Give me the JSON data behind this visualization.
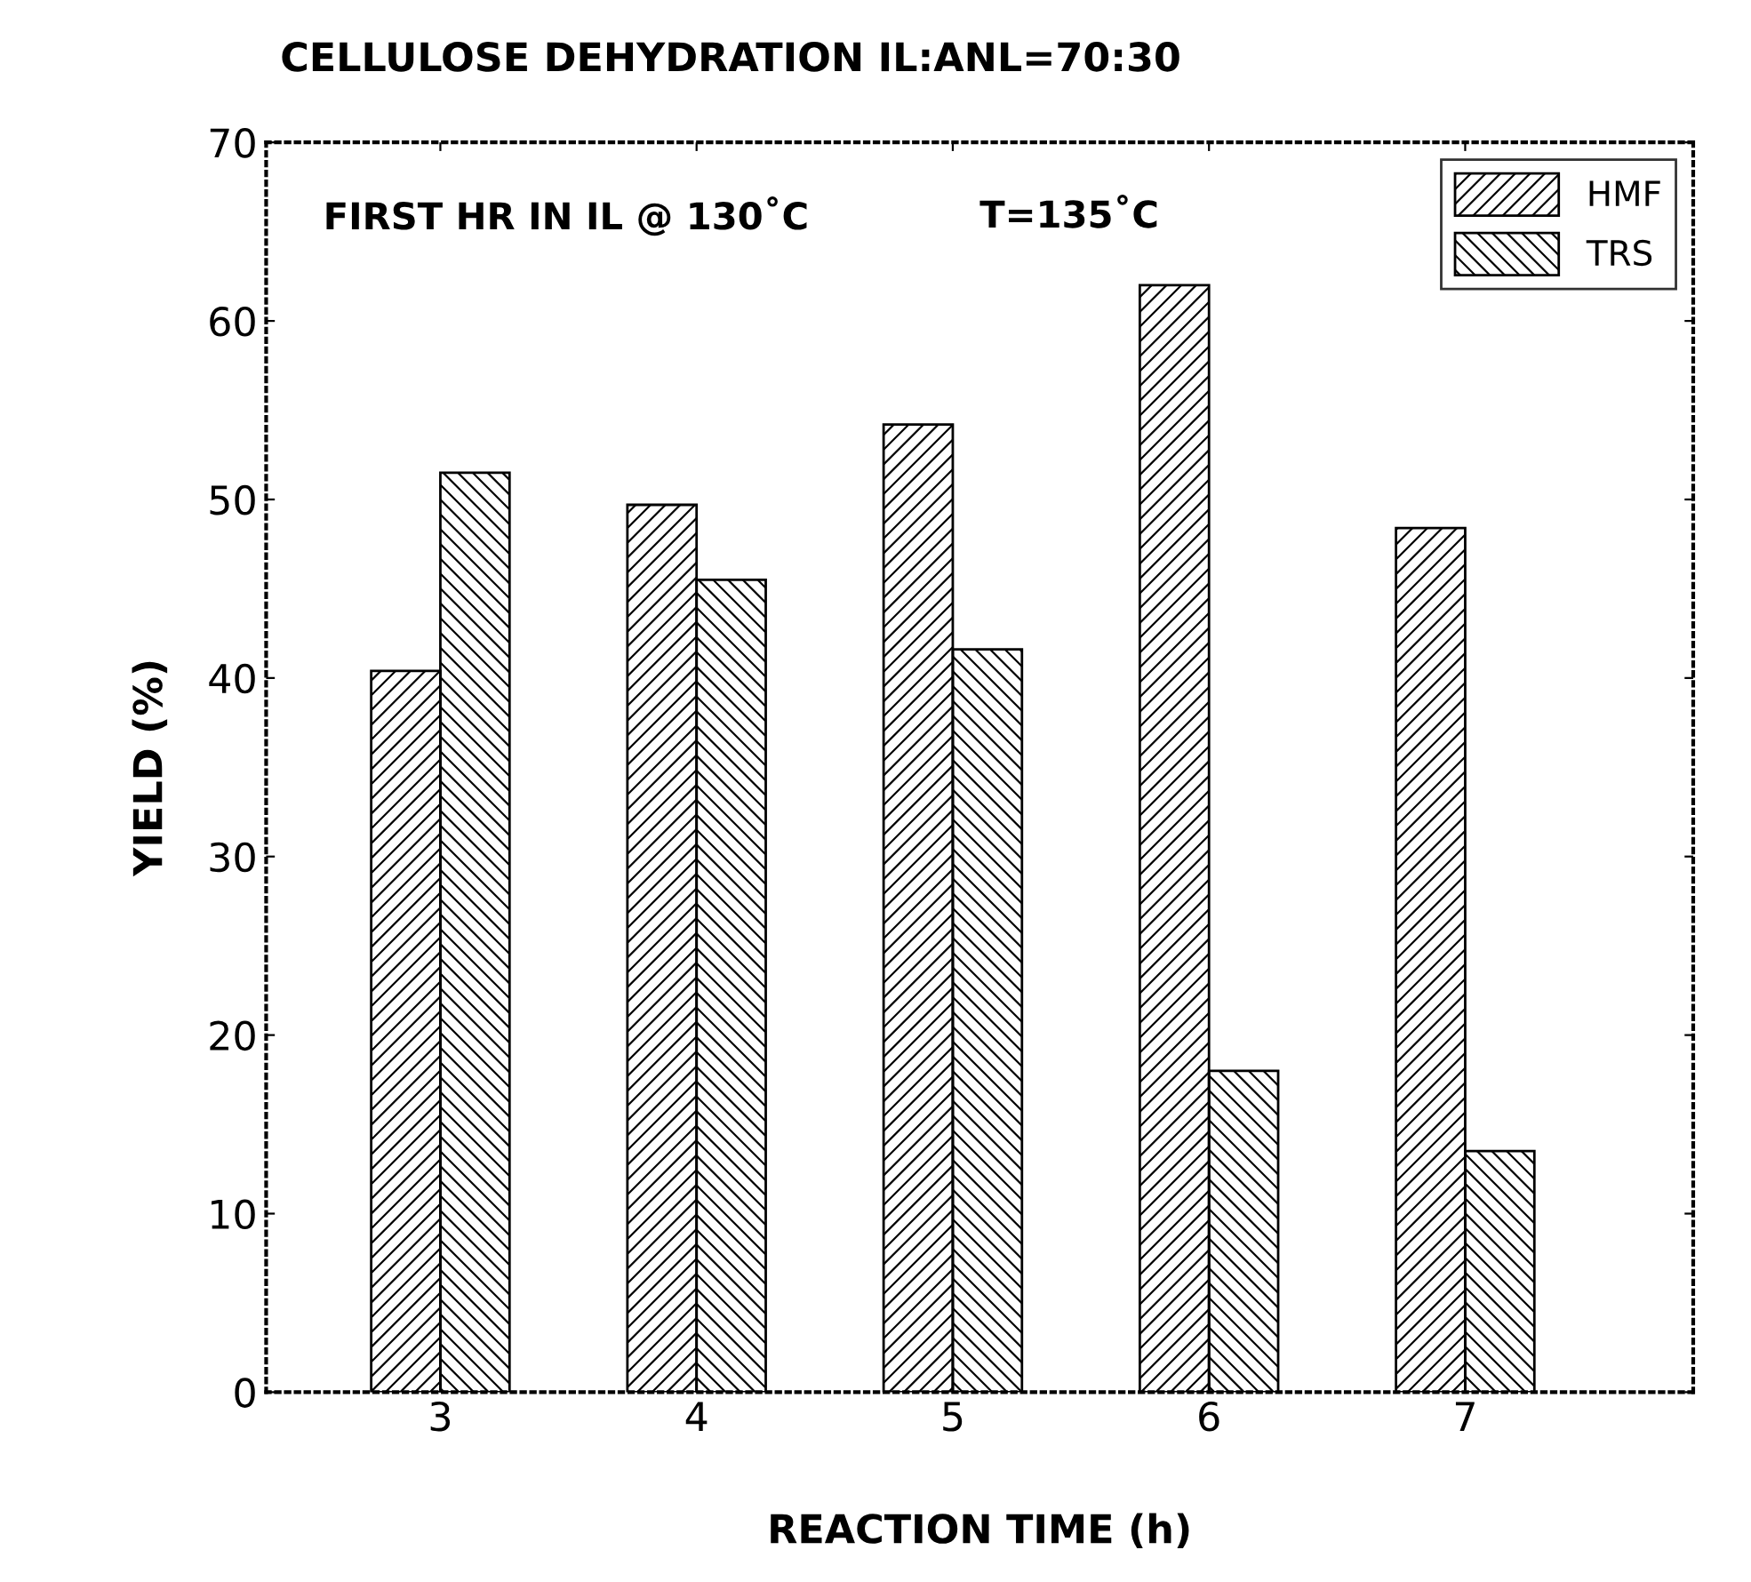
{
  "chart_data": {
    "type": "bar",
    "title": "CELLULOSE DEHYDRATION IL:ANL=70:30",
    "xlabel": "REACTION TIME (h)",
    "ylabel": "YIELD (%)",
    "categories": [
      "3",
      "4",
      "5",
      "6",
      "7"
    ],
    "series": [
      {
        "name": "HMF",
        "color": "#000000",
        "values": [
          40.4,
          49.7,
          54.2,
          62.0,
          48.4
        ]
      },
      {
        "name": "TRS",
        "color": "#000000",
        "values": [
          51.5,
          45.5,
          41.6,
          18.0,
          13.5
        ]
      }
    ],
    "ylim": [
      0,
      70
    ],
    "yticks": [
      0,
      10,
      20,
      30,
      40,
      50,
      60,
      70
    ],
    "grid": false,
    "legend": "top right",
    "annotations": [
      "FIRST HR IN IL @ 130˚C",
      "T=135˚C"
    ]
  }
}
